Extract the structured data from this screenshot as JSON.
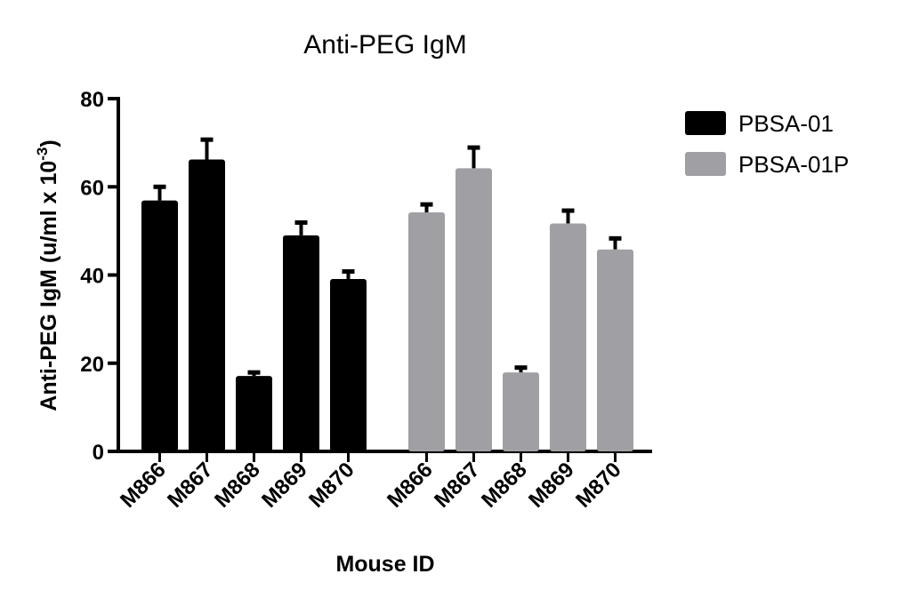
{
  "chart_data": {
    "type": "bar",
    "title": "Anti-PEG IgM",
    "xlabel": "Mouse ID",
    "ylabel": "Anti-PEG IgM (u/ml x 10",
    "ylabel_sup": "-3",
    "ylabel_close": ")",
    "ylim": [
      0,
      80
    ],
    "yticks": [
      "0",
      "20",
      "40",
      "60",
      "80"
    ],
    "categories": [
      "M866",
      "M867",
      "M868",
      "M869",
      "M870"
    ],
    "legend_position": "right",
    "series": [
      {
        "name": "PBSA-01",
        "color": "#000000",
        "values": [
          56.9,
          66.2,
          17.1,
          49.0,
          39.1
        ],
        "error": [
          3.1,
          4.5,
          0.8,
          2.9,
          1.7
        ]
      },
      {
        "name": "PBSA-01P",
        "color": "#a0a0a4",
        "values": [
          54.2,
          64.2,
          17.9,
          51.7,
          45.8
        ],
        "error": [
          1.8,
          4.7,
          1.1,
          2.9,
          2.5
        ]
      }
    ]
  }
}
